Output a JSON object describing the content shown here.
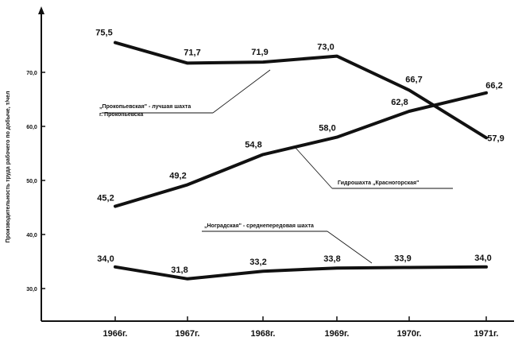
{
  "chart_data": {
    "type": "line",
    "ylabel": "Производительность труда рабочего по добыче, т/чел",
    "categories": [
      "1966г.",
      "1967г.",
      "1968г.",
      "1969г.",
      "1970г.",
      "1971г."
    ],
    "yticks": [
      "30,0",
      "40,0",
      "50,0",
      "60,0",
      "70,0"
    ],
    "ylim": [
      28,
      80
    ],
    "grid": false,
    "series": [
      {
        "name": "„Прокопьевская\" - лучшая шахта г. Прокопьевска",
        "values": [
          75.5,
          71.7,
          71.9,
          73.0,
          66.7,
          57.9
        ],
        "labels": [
          "75,5",
          "71,7",
          "71,9",
          "73,0",
          "66,7",
          "57,9"
        ]
      },
      {
        "name": "Гидрошахта „Красногорская\"",
        "values": [
          45.2,
          49.2,
          54.8,
          58.0,
          62.8,
          66.2
        ],
        "labels": [
          "45,2",
          "49,2",
          "54,8",
          "58,0",
          "62,8",
          "66,2"
        ]
      },
      {
        "name": "„Ноградская\" - среднепередовая шахта",
        "values": [
          34.0,
          31.8,
          33.2,
          33.8,
          33.9,
          34.0
        ],
        "labels": [
          "34,0",
          "31,8",
          "33,2",
          "33,8",
          "33,9",
          "34,0"
        ]
      }
    ],
    "annotations": [
      {
        "lines": [
          "„Прокопьевская\" - лучшая шахта",
          "г. Прокопьевска"
        ]
      },
      {
        "lines": [
          "Гидрошахта „Красногорская\""
        ]
      },
      {
        "lines": [
          "„Ноградская\" - среднепередовая шахта"
        ]
      }
    ]
  }
}
